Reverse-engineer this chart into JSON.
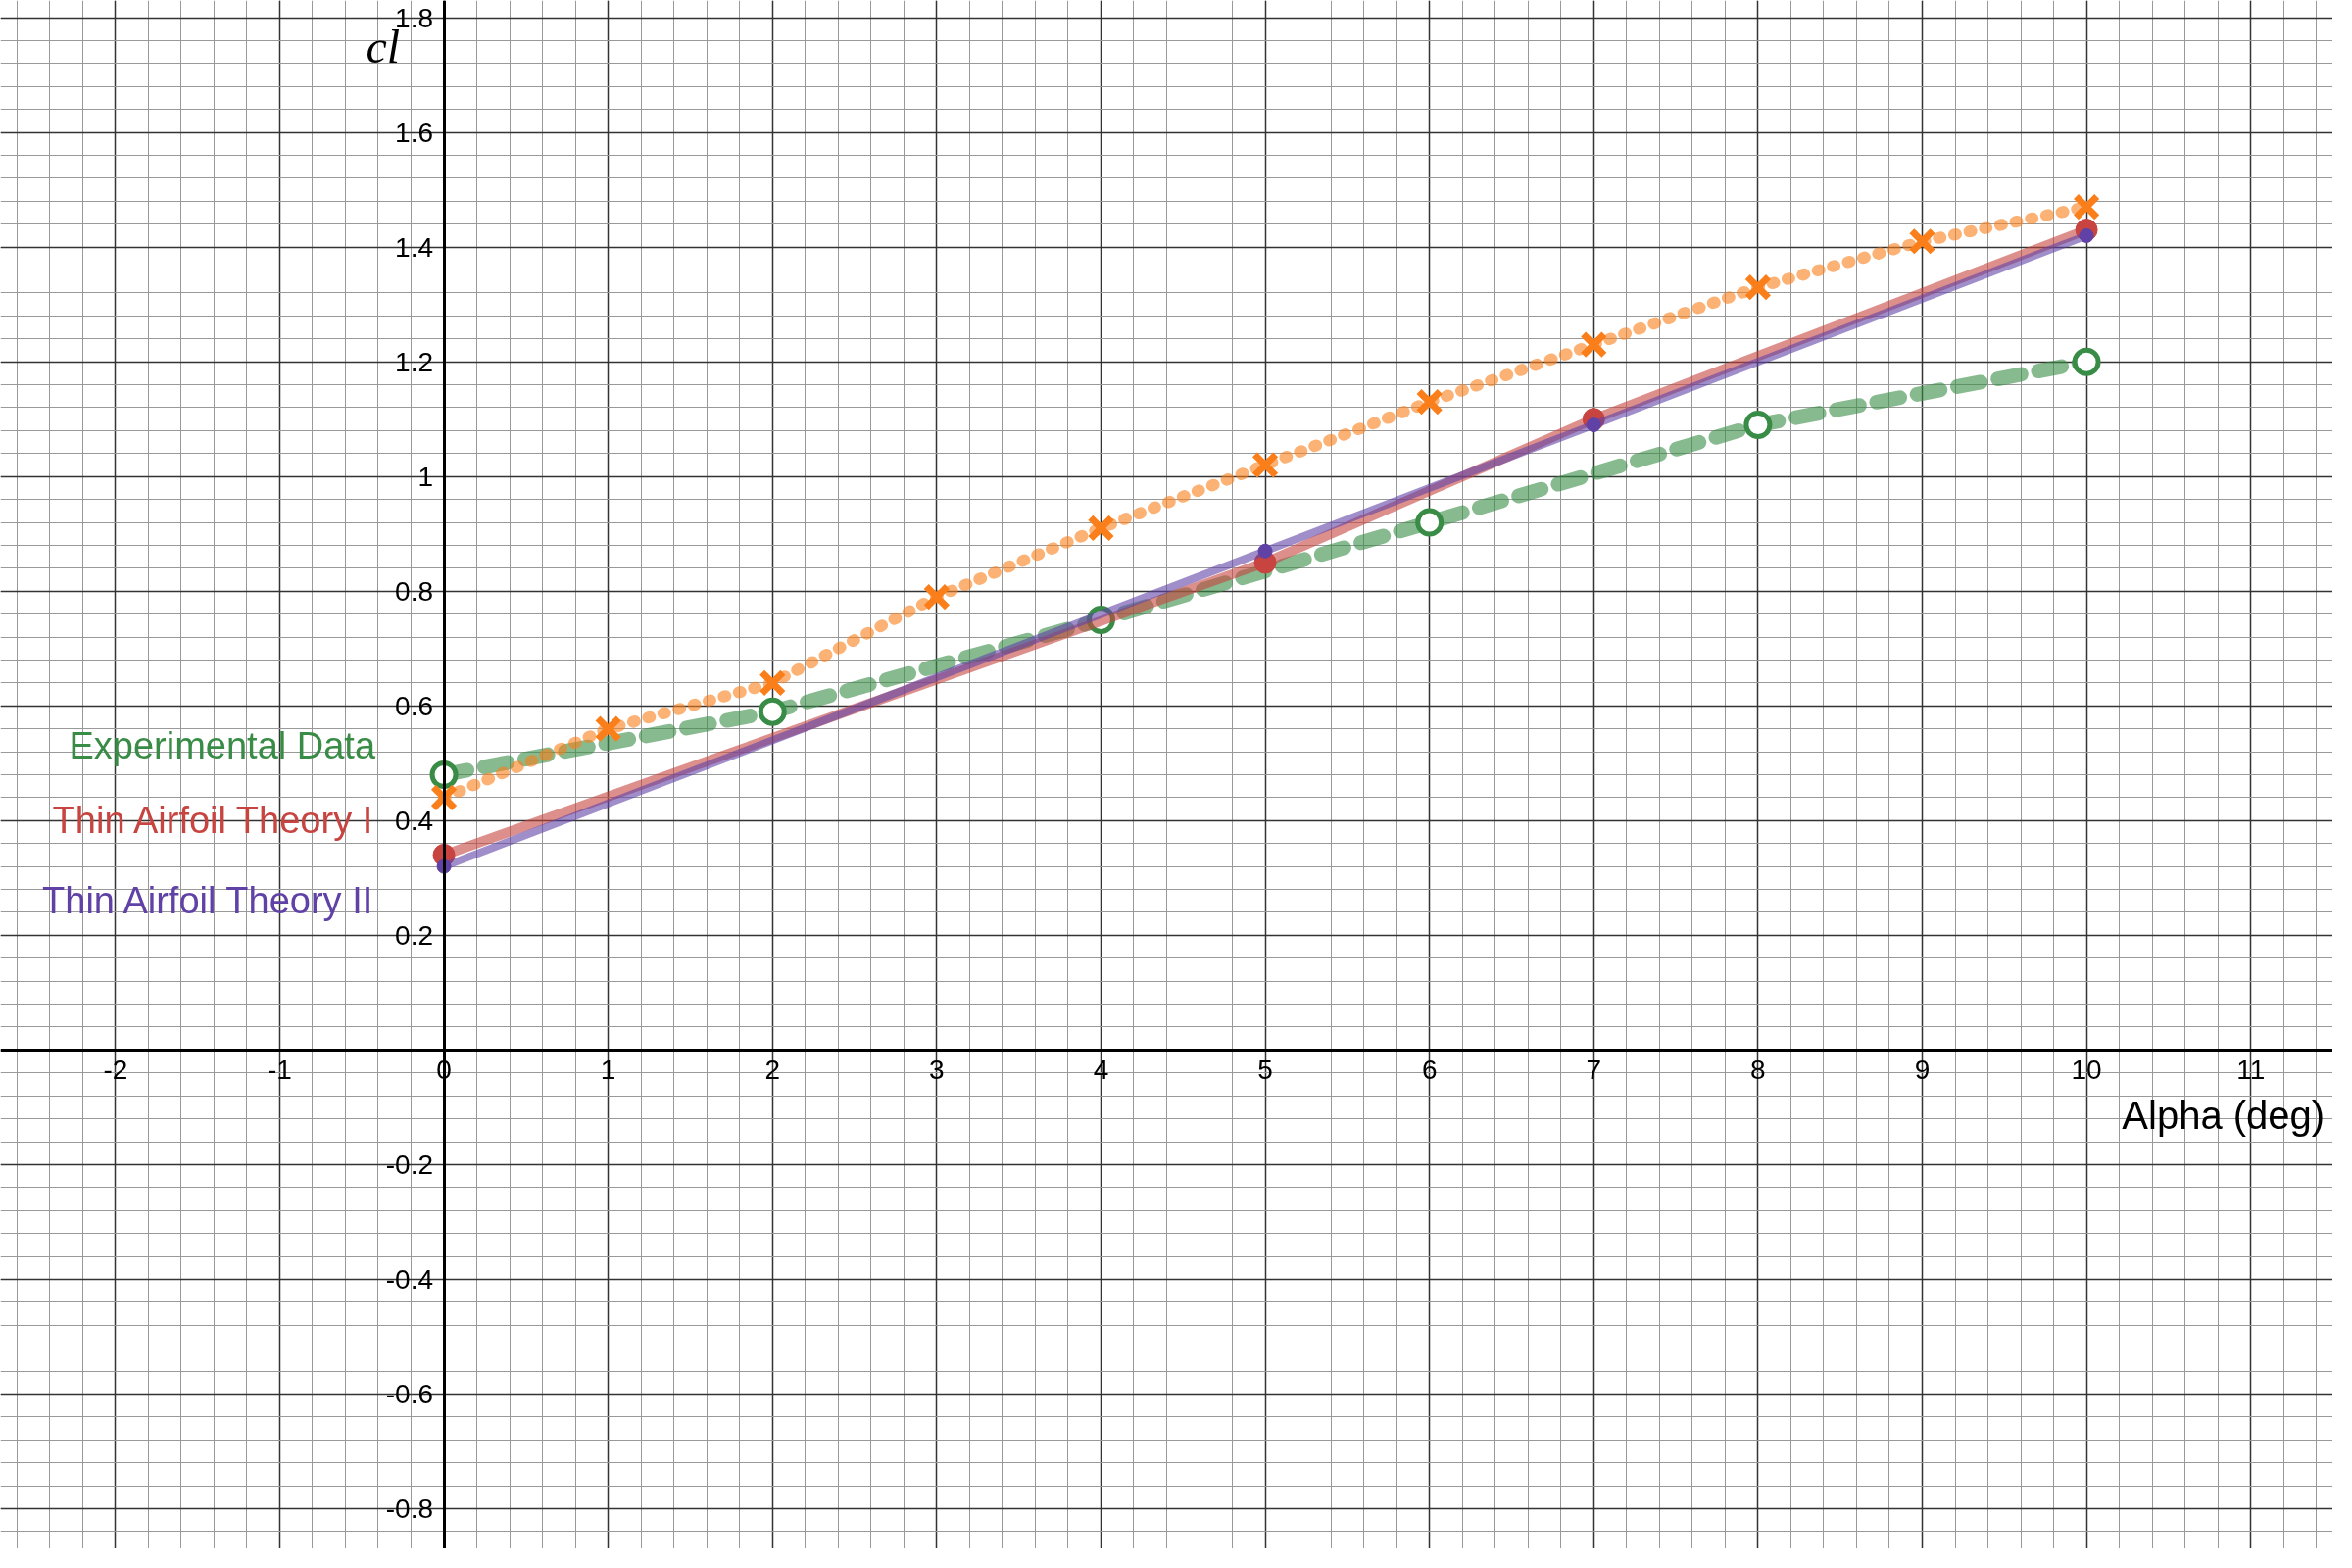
{
  "chart_data": {
    "type": "line",
    "xlabel": "Alpha (deg)",
    "ylabel": "cl",
    "xlim": [
      -2.7,
      11.5
    ],
    "ylim": [
      -0.87,
      1.83
    ],
    "xticks": [
      -2,
      -1,
      0,
      1,
      2,
      3,
      4,
      5,
      6,
      7,
      8,
      9,
      10,
      11
    ],
    "yticks": [
      -0.8,
      -0.6,
      -0.4,
      -0.2,
      0.2,
      0.4,
      0.6,
      0.8,
      1,
      1.2,
      1.4,
      1.6,
      1.8
    ],
    "grid": true,
    "series": [
      {
        "name": "Experimental Data",
        "color": "#388c46",
        "x": [
          0,
          2,
          4,
          6,
          8,
          10
        ],
        "values": [
          0.48,
          0.59,
          0.75,
          0.92,
          1.09,
          1.2
        ],
        "marker": "circle",
        "line_style": "dashed"
      },
      {
        "color": "#fa7e19",
        "x": [
          0,
          1,
          2,
          3,
          4,
          5,
          6,
          7,
          8,
          9,
          10
        ],
        "values": [
          0.44,
          0.56,
          0.64,
          0.79,
          0.91,
          1.02,
          1.13,
          1.23,
          1.33,
          1.41,
          1.47
        ],
        "marker": "cross",
        "line_style": "dotted"
      },
      {
        "name": "Thin Airfoil Theory I",
        "color": "#c74440",
        "x": [
          0,
          5,
          7,
          10
        ],
        "values": [
          0.34,
          0.85,
          1.1,
          1.43
        ],
        "marker": "circle",
        "line_style": "solid"
      },
      {
        "name": "Thin Airfoil Theory II",
        "color": "#6042a6",
        "x": [
          0,
          5,
          7,
          10
        ],
        "values": [
          0.32,
          0.87,
          1.09,
          1.42
        ],
        "marker": "circle",
        "line_style": "solid"
      }
    ]
  }
}
